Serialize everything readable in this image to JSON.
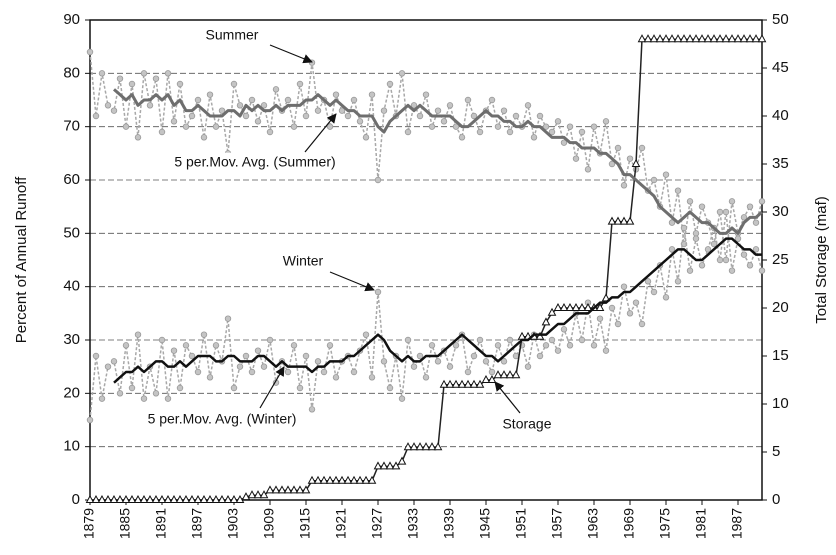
{
  "chart_data": {
    "type": "line",
    "y_label": "Percent of Annual Runoff",
    "y2_label": "Total Storage (maf)",
    "x": [
      1879,
      1880,
      1881,
      1882,
      1883,
      1884,
      1885,
      1886,
      1887,
      1888,
      1889,
      1890,
      1891,
      1892,
      1893,
      1894,
      1895,
      1896,
      1897,
      1898,
      1899,
      1900,
      1901,
      1902,
      1903,
      1904,
      1905,
      1906,
      1907,
      1908,
      1909,
      1910,
      1911,
      1912,
      1913,
      1914,
      1915,
      1916,
      1917,
      1918,
      1919,
      1920,
      1921,
      1922,
      1923,
      1924,
      1925,
      1926,
      1927,
      1928,
      1929,
      1930,
      1931,
      1932,
      1933,
      1934,
      1935,
      1936,
      1937,
      1938,
      1939,
      1940,
      1941,
      1942,
      1943,
      1944,
      1945,
      1946,
      1947,
      1948,
      1949,
      1950,
      1951,
      1952,
      1953,
      1954,
      1955,
      1956,
      1957,
      1958,
      1959,
      1960,
      1961,
      1962,
      1963,
      1964,
      1965,
      1966,
      1967,
      1968,
      1969,
      1970,
      1971,
      1972,
      1973,
      1974,
      1975,
      1976,
      1977,
      1978,
      1979,
      1980,
      1981,
      1982,
      1983,
      1984,
      1985,
      1986,
      1987,
      1988,
      1989,
      1990,
      1991
    ],
    "xlim": [
      1879,
      1991
    ],
    "xticks": [
      1879,
      1885,
      1891,
      1897,
      1903,
      1909,
      1915,
      1921,
      1927,
      1933,
      1939,
      1945,
      1951,
      1957,
      1963,
      1969,
      1975,
      1981,
      1987
    ],
    "ylim": [
      0,
      90
    ],
    "yticks": [
      0,
      10,
      20,
      30,
      40,
      50,
      60,
      70,
      80,
      90
    ],
    "y2lim": [
      0,
      50
    ],
    "y2ticks": [
      0,
      5,
      10,
      15,
      20,
      25,
      30,
      35,
      40,
      45,
      50
    ],
    "grid": true,
    "series": [
      {
        "name": "Summer",
        "color": "#a8a8a8",
        "values": [
          84,
          72,
          80,
          74,
          73,
          79,
          70,
          78,
          68,
          80,
          74,
          79,
          69,
          80,
          71,
          78,
          70,
          72,
          75,
          68,
          76,
          70,
          73,
          65,
          78,
          74,
          72,
          75,
          71,
          74,
          69,
          77,
          73,
          75,
          70,
          78,
          72,
          82,
          73,
          75,
          70,
          76,
          73,
          72,
          75,
          71,
          68,
          76,
          60,
          73,
          78,
          72,
          80,
          69,
          74,
          72,
          76,
          70,
          73,
          71,
          74,
          70,
          68,
          75,
          72,
          69,
          73,
          75,
          70,
          73,
          69,
          72,
          70,
          74,
          68,
          72,
          70,
          69,
          71,
          67,
          70,
          64,
          69,
          62,
          70,
          65,
          71,
          63,
          66,
          59,
          64,
          62,
          66,
          58,
          60,
          55,
          61,
          52,
          58,
          48,
          56,
          50,
          55,
          52,
          48,
          54,
          45,
          56,
          50,
          53,
          55,
          52,
          56
        ]
      },
      {
        "name": "Winter",
        "color": "#a8a8a8",
        "values": [
          15,
          27,
          19,
          25,
          26,
          20,
          29,
          21,
          31,
          19,
          25,
          20,
          30,
          19,
          28,
          21,
          29,
          27,
          24,
          31,
          23,
          29,
          26,
          34,
          21,
          25,
          27,
          24,
          28,
          25,
          30,
          22,
          26,
          24,
          29,
          21,
          27,
          17,
          26,
          24,
          29,
          23,
          26,
          27,
          24,
          28,
          31,
          23,
          39,
          26,
          21,
          27,
          19,
          30,
          25,
          27,
          23,
          29,
          26,
          28,
          25,
          29,
          31,
          24,
          27,
          30,
          26,
          24,
          29,
          26,
          30,
          27,
          29,
          25,
          31,
          27,
          29,
          30,
          28,
          32,
          29,
          35,
          30,
          37,
          29,
          34,
          28,
          36,
          33,
          40,
          35,
          37,
          33,
          41,
          39,
          44,
          38,
          47,
          41,
          51,
          43,
          49,
          44,
          47,
          51,
          45,
          54,
          43,
          49,
          46,
          44,
          47,
          43
        ]
      },
      {
        "name": "5 per.Mov. Avg. (Summer)",
        "color": "#6e6e6e",
        "values": [
          null,
          null,
          null,
          null,
          77,
          76,
          75,
          76,
          74,
          75,
          75,
          76,
          75,
          76,
          74,
          75,
          73,
          73,
          74,
          73,
          72,
          72,
          72,
          73,
          73,
          72,
          74,
          73,
          74,
          73,
          73,
          74,
          73,
          74,
          74,
          74,
          75,
          75,
          76,
          75,
          74,
          75,
          74,
          73,
          73,
          72,
          72,
          72,
          70,
          69,
          71,
          72,
          73,
          74,
          73,
          74,
          73,
          72,
          72,
          72,
          72,
          71,
          70,
          70,
          71,
          72,
          73,
          72,
          72,
          71,
          71,
          70,
          70,
          71,
          70,
          70,
          69,
          68,
          68,
          68,
          67,
          67,
          66,
          66,
          66,
          65,
          65,
          64,
          63,
          61,
          61,
          60,
          59,
          58,
          57,
          55,
          54,
          53,
          52,
          53,
          54,
          53,
          52,
          52,
          51,
          50,
          50,
          51,
          50,
          52,
          53,
          53,
          54
        ]
      },
      {
        "name": "5 per.Mov. Avg. (Winter)",
        "color": "#111111",
        "values": [
          null,
          null,
          null,
          null,
          22,
          23,
          24,
          24,
          25,
          24,
          25,
          26,
          26,
          25,
          25,
          26,
          25,
          26,
          27,
          27,
          27,
          26,
          26,
          27,
          27,
          26,
          26,
          26,
          27,
          27,
          26,
          25,
          26,
          25,
          25,
          25,
          25,
          24,
          25,
          25,
          26,
          26,
          26,
          27,
          27,
          28,
          29,
          30,
          31,
          30,
          28,
          27,
          26,
          27,
          26,
          26,
          27,
          27,
          27,
          28,
          29,
          30,
          31,
          30,
          29,
          28,
          27,
          27,
          26,
          27,
          28,
          29,
          30,
          30,
          31,
          31,
          31,
          32,
          33,
          33,
          34,
          35,
          35,
          35,
          36,
          37,
          37,
          38,
          38,
          39,
          39,
          40,
          41,
          42,
          43,
          44,
          45,
          46,
          47,
          47,
          46,
          45,
          45,
          46,
          47,
          48,
          49,
          49,
          48,
          47,
          47,
          46,
          46
        ]
      },
      {
        "name": "Storage",
        "color": "#222222",
        "axis": "y2",
        "values": [
          0,
          0,
          0,
          0,
          0,
          0,
          0,
          0,
          0,
          0,
          0,
          0,
          0,
          0,
          0,
          0,
          0,
          0,
          0,
          0,
          0,
          0,
          0,
          0,
          0,
          0,
          0.3,
          0.5,
          0.5,
          0.5,
          1,
          1,
          1,
          1,
          1,
          1,
          1,
          2,
          2,
          2,
          2,
          2,
          2,
          2,
          2,
          2,
          2,
          2,
          3.5,
          3.5,
          3.5,
          3.5,
          4,
          5.5,
          5.5,
          5.5,
          5.5,
          5.5,
          5.5,
          12,
          12,
          12,
          12,
          12,
          12,
          12,
          12.5,
          12.5,
          13,
          13,
          13,
          13,
          17,
          17,
          17,
          17,
          18.5,
          19.5,
          20,
          20,
          20,
          20,
          20,
          20,
          20,
          20,
          21,
          29,
          29,
          29,
          29,
          35,
          48,
          48,
          48,
          48,
          48,
          48,
          48,
          48,
          48,
          48,
          48,
          48,
          48,
          48,
          48,
          48,
          48,
          48,
          48,
          48,
          48
        ]
      }
    ]
  }
}
